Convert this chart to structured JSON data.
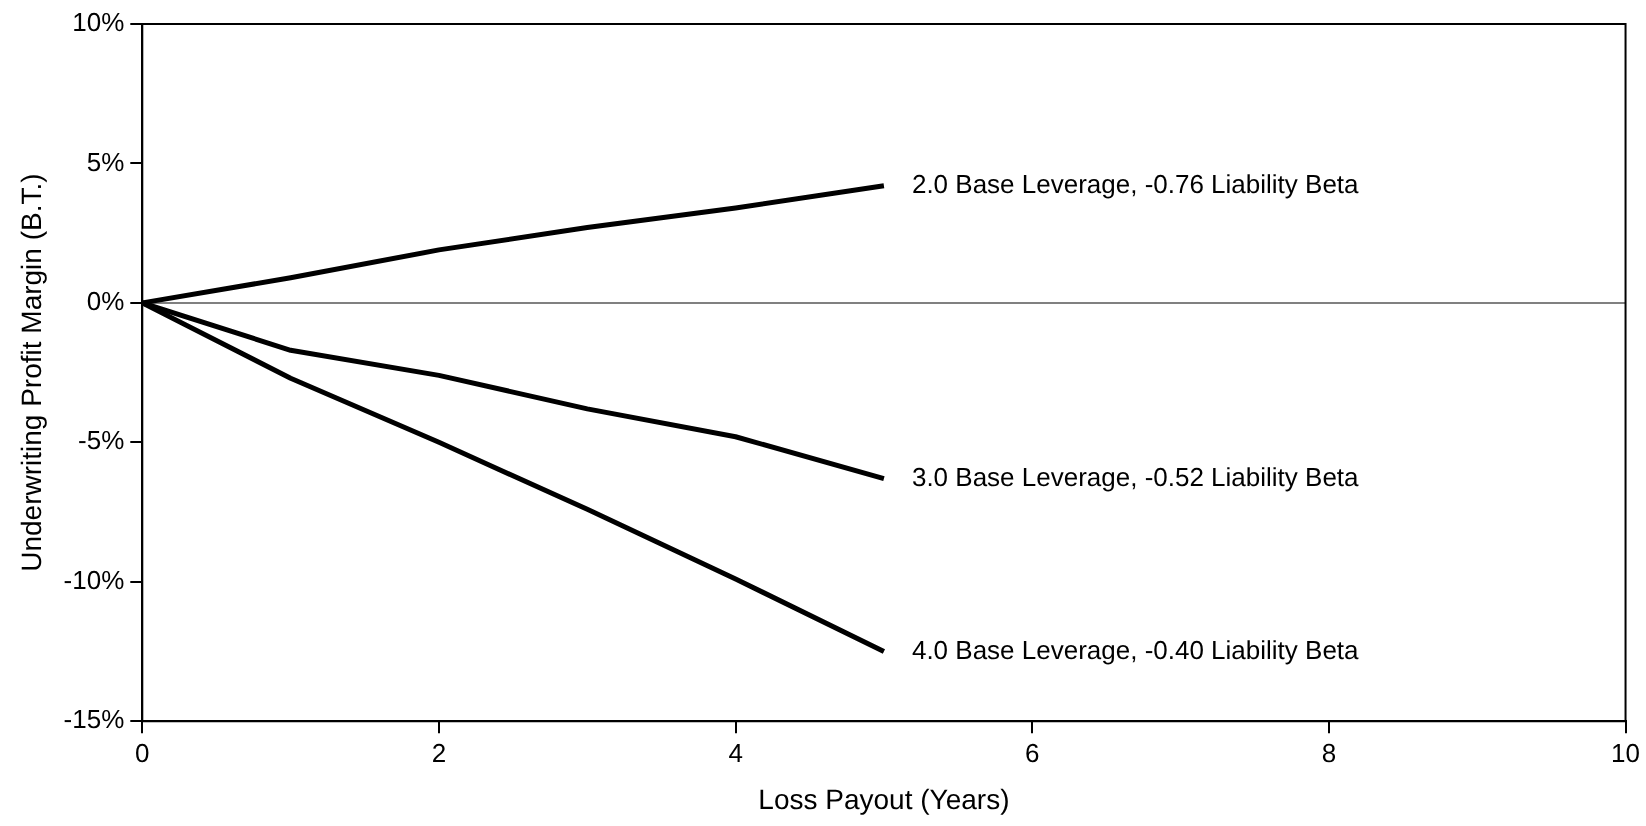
{
  "chart_data": {
    "type": "line",
    "xlabel": "Loss Payout (Years)",
    "ylabel": "Underwriting Profit Margin (B.T.)",
    "x": [
      0,
      1,
      2,
      3,
      4,
      5
    ],
    "series": [
      {
        "name": "2.0 Base Leverage, -0.76 Liability Beta",
        "color": "#000000",
        "values": [
          0,
          0.9,
          1.9,
          2.7,
          3.4,
          4.2
        ]
      },
      {
        "name": "3.0 Base Leverage, -0.52 Liability Beta",
        "color": "#000000",
        "values": [
          0,
          -1.7,
          -2.6,
          -3.8,
          -4.8,
          -6.3
        ]
      },
      {
        "name": "4.0 Base Leverage, -0.40 Liability Beta",
        "color": "#000000",
        "values": [
          0,
          -2.7,
          -5.0,
          -7.4,
          -9.9,
          -12.5
        ]
      }
    ],
    "xlim": [
      0,
      10
    ],
    "xticks": [
      0,
      2,
      4,
      6,
      8,
      10
    ],
    "ylim": [
      -15,
      10
    ],
    "yticks": [
      {
        "value": -15,
        "label": "-15%"
      },
      {
        "value": -10,
        "label": "-10%"
      },
      {
        "value": -5,
        "label": "-5%"
      },
      {
        "value": 0,
        "label": "0%"
      },
      {
        "value": 5,
        "label": "5%"
      },
      {
        "value": 10,
        "label": "10%"
      }
    ],
    "ref_lines": [
      {
        "axis": "y",
        "value": 0,
        "color": "#808080"
      }
    ],
    "grid": false,
    "legend": false,
    "marker": "none",
    "line_style": "solid"
  }
}
